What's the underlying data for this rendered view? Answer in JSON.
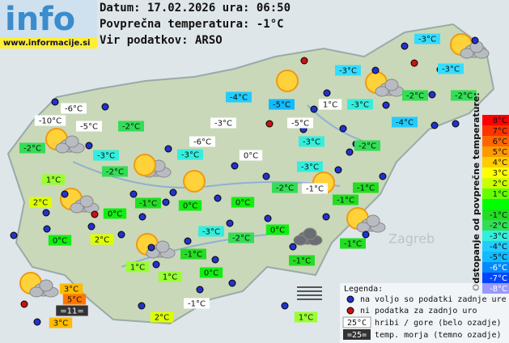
{
  "header": {
    "logo": "info",
    "url": "www.informacije.si",
    "date_line": "Datum: 17.02.2026 ura: 06:50",
    "avg_line": "Povprečna temperatura: -1°C",
    "source_line": "Vir podatkov: ARSO"
  },
  "map_labels": [
    "Zagreb"
  ],
  "stations": [
    {
      "label": "-3°C",
      "color": "#33ddff"
    },
    {
      "label": "-3°C",
      "color": "#33ddff"
    },
    {
      "label": "-3°C",
      "color": "#33ddff"
    },
    {
      "label": "-4°C",
      "color": "#22ccff"
    },
    {
      "label": "-5°C",
      "color": "#11bbff"
    },
    {
      "label": "1°C",
      "color": "#ffffff"
    },
    {
      "label": "-3°C",
      "color": "#33eedd"
    },
    {
      "label": "-2°C",
      "color": "#33dd55"
    },
    {
      "label": "-2°C",
      "color": "#33dd55"
    },
    {
      "label": "-6°C",
      "color": "#ffffff"
    },
    {
      "label": "-10°C",
      "color": "#ffffff"
    },
    {
      "label": "-5°C",
      "color": "#ffffff"
    },
    {
      "label": "-2°C",
      "color": "#33dd55"
    },
    {
      "label": "-3°C",
      "color": "#ffffff"
    },
    {
      "label": "-5°C",
      "color": "#ffffff"
    },
    {
      "label": "-4°C",
      "color": "#22ccff"
    },
    {
      "label": "-2°C",
      "color": "#33dd55"
    },
    {
      "label": "-3°C",
      "color": "#33eedd"
    },
    {
      "label": "-6°C",
      "color": "#ffffff"
    },
    {
      "label": "-3°C",
      "color": "#33eedd"
    },
    {
      "label": "-2°C",
      "color": "#33dd55"
    },
    {
      "label": "-3°C",
      "color": "#33eedd"
    },
    {
      "label": "0°C",
      "color": "#ffffff"
    },
    {
      "label": "-2°C",
      "color": "#33dd55"
    },
    {
      "label": "-3°C",
      "color": "#33eedd"
    },
    {
      "label": "1°C",
      "color": "#99ff33"
    },
    {
      "label": "-2°C",
      "color": "#33dd55"
    },
    {
      "label": "-1°C",
      "color": "#ffffff"
    },
    {
      "label": "-1°C",
      "color": "#22dd22"
    },
    {
      "label": "2°C",
      "color": "#ddff00"
    },
    {
      "label": "-1°C",
      "color": "#22dd22"
    },
    {
      "label": "0°C",
      "color": "#11ee11"
    },
    {
      "label": "0°C",
      "color": "#11ee11"
    },
    {
      "label": "-1°C",
      "color": "#22dd22"
    },
    {
      "label": "0°C",
      "color": "#11ee11"
    },
    {
      "label": "-3°C",
      "color": "#33eedd"
    },
    {
      "label": "-2°C",
      "color": "#33dd55"
    },
    {
      "label": "0°C",
      "color": "#11ee11"
    },
    {
      "label": "-1°C",
      "color": "#22dd22"
    },
    {
      "label": "0°C",
      "color": "#11ee11"
    },
    {
      "label": "2°C",
      "color": "#ddff00"
    },
    {
      "label": "-1°C",
      "color": "#22dd22"
    },
    {
      "label": "-1°C",
      "color": "#22dd22"
    },
    {
      "label": "1°C",
      "color": "#99ff33"
    },
    {
      "label": "1°C",
      "color": "#99ff33"
    },
    {
      "label": "0°C",
      "color": "#11ee11"
    },
    {
      "label": "3°C",
      "color": "#ffbb00"
    },
    {
      "label": "5°C",
      "color": "#ff7700"
    },
    {
      "label": "-1°C",
      "color": "#ffffff"
    },
    {
      "label": "2°C",
      "color": "#ddff00"
    },
    {
      "label": "1°C",
      "color": "#99ff33"
    },
    {
      "label": "3°C",
      "color": "#ffbb00"
    }
  ],
  "sea": {
    "label": "=11="
  },
  "scale": {
    "title": "Odstopanje od povprečne temperature:",
    "items": [
      {
        "label": "8°C",
        "color": "#ff0000"
      },
      {
        "label": "7°C",
        "color": "#ff3300"
      },
      {
        "label": "6°C",
        "color": "#ff6600"
      },
      {
        "label": "5°C",
        "color": "#ff9900"
      },
      {
        "label": "4°C",
        "color": "#ffcc00"
      },
      {
        "label": "3°C",
        "color": "#ffff00"
      },
      {
        "label": "2°C",
        "color": "#ccff00"
      },
      {
        "label": "1°C",
        "color": "#66ff00"
      },
      {
        "label": "-1°C",
        "color": "#22dd22"
      },
      {
        "label": "-2°C",
        "color": "#33dd55"
      },
      {
        "label": "-3°C",
        "color": "#33eedd"
      },
      {
        "label": "-4°C",
        "color": "#22ccff"
      },
      {
        "label": "-5°C",
        "color": "#11bbff"
      },
      {
        "label": "-6°C",
        "color": "#0088ff"
      },
      {
        "label": "-7°C",
        "color": "#0044ff"
      },
      {
        "label": "-8°C",
        "color": "#0000ff"
      }
    ]
  },
  "legend": {
    "title": "Legenda:",
    "available": "na voljo so podatki zadnje ure",
    "missing": "ni podatka za zadnjo uro",
    "mountain_sample": "25°C",
    "mountain_text": "hribi / gore (belo ozadje)",
    "sea_sample": "=25=",
    "sea_text": "temp. morja (temno ozadje)"
  }
}
